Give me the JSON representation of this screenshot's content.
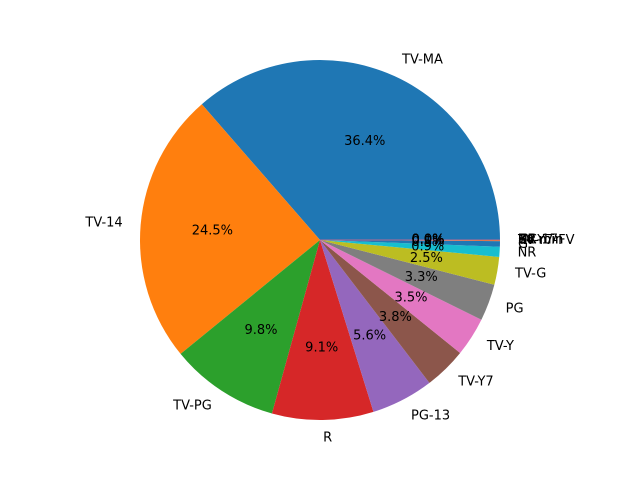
{
  "chart_data": {
    "type": "pie",
    "start_angle_deg": 0,
    "direction": "counterclockwise",
    "slices": [
      {
        "label": "TV-MA",
        "value": 36.4,
        "pct_text": "36.4%",
        "color": "#1f77b4"
      },
      {
        "label": "TV-14",
        "value": 24.5,
        "pct_text": "24.5%",
        "color": "#ff7f0e"
      },
      {
        "label": "TV-PG",
        "value": 9.8,
        "pct_text": "9.8%",
        "color": "#2ca02c"
      },
      {
        "label": "R",
        "value": 9.1,
        "pct_text": "9.1%",
        "color": "#d62728"
      },
      {
        "label": "PG-13",
        "value": 5.6,
        "pct_text": "5.6%",
        "color": "#9467bd"
      },
      {
        "label": "TV-Y7",
        "value": 3.8,
        "pct_text": "3.8%",
        "color": "#8c564b"
      },
      {
        "label": "TV-Y",
        "value": 3.5,
        "pct_text": "3.5%",
        "color": "#e377c2"
      },
      {
        "label": "PG",
        "value": 3.3,
        "pct_text": "3.3%",
        "color": "#7f7f7f"
      },
      {
        "label": "TV-G",
        "value": 2.5,
        "pct_text": "2.5%",
        "color": "#bcbd22"
      },
      {
        "label": "NR",
        "value": 0.9,
        "pct_text": "0.9%",
        "color": "#17becf"
      },
      {
        "label": "G",
        "value": 0.5,
        "pct_text": "0.5%",
        "color": "#1f77b4"
      },
      {
        "label": "TV-Y7-FV",
        "value": 0.1,
        "pct_text": "0.1%",
        "color": "#ff7f0e"
      },
      {
        "label": "NC-17",
        "value": 0.0,
        "pct_text": "0.0%",
        "color": "#2ca02c"
      },
      {
        "label": "UR",
        "value": 0.0,
        "pct_text": "0.0%",
        "color": "#d62728"
      },
      {
        "label": "84 min",
        "value": 0.0,
        "pct_text": "0.0%",
        "color": "#9467bd"
      },
      {
        "label": "74 min",
        "value": 0.0,
        "pct_text": "0.0%",
        "color": "#8c564b"
      },
      {
        "label": "66 min",
        "value": 0.0,
        "pct_text": "0.0%",
        "color": "#e377c2"
      }
    ]
  }
}
